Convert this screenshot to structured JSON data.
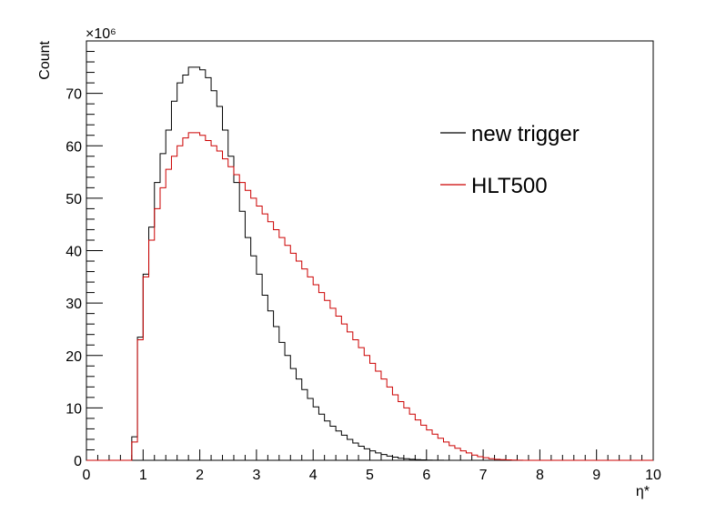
{
  "chart_data": {
    "type": "histogram",
    "xlabel": "η*",
    "ylabel": "Count",
    "y_multiplier": "×10⁶",
    "xlim": [
      0,
      10
    ],
    "ylim": [
      0,
      80
    ],
    "bin_width": 0.1,
    "x_ticks": [
      "0",
      "1",
      "2",
      "3",
      "4",
      "5",
      "6",
      "7",
      "8",
      "9",
      "10"
    ],
    "y_ticks": [
      "0",
      "10",
      "20",
      "30",
      "40",
      "50",
      "60",
      "70"
    ],
    "legend_position": "top-right",
    "series": [
      {
        "name": "new trigger",
        "color": "#000000",
        "values": [
          0,
          0,
          0,
          0,
          0,
          0,
          0,
          0,
          4.5,
          23.5,
          35.5,
          44.5,
          53,
          58.5,
          63,
          68.5,
          72,
          73.5,
          75,
          75,
          74.5,
          73,
          70.5,
          67.5,
          63,
          58,
          53,
          47.5,
          42.5,
          39,
          35.5,
          31.5,
          28.5,
          25.5,
          22.5,
          20,
          17.5,
          15.5,
          13.5,
          11.8,
          10.2,
          8.8,
          7.5,
          6.5,
          5.6,
          4.8,
          4,
          3.3,
          2.7,
          2.2,
          1.8,
          1.4,
          1.1,
          0.8,
          0.6,
          0.4,
          0.3,
          0.2,
          0.12,
          0.08,
          0.05,
          0.03,
          0.02,
          0,
          0,
          0,
          0,
          0,
          0,
          0,
          0,
          0,
          0,
          0,
          0,
          0,
          0,
          0,
          0,
          0,
          0,
          0,
          0,
          0,
          0,
          0,
          0,
          0,
          0,
          0,
          0,
          0,
          0,
          0,
          0,
          0,
          0,
          0,
          0,
          0
        ]
      },
      {
        "name": "HLT500",
        "color": "#cc0000",
        "values": [
          0,
          0,
          0,
          0,
          0,
          0,
          0,
          0,
          3.5,
          23,
          35,
          42,
          48,
          52,
          55.5,
          58,
          60,
          61.5,
          62.5,
          62.5,
          62,
          61,
          60,
          59,
          57.5,
          56,
          54.5,
          53,
          51.5,
          50,
          48.5,
          47,
          45.5,
          44,
          42.5,
          41,
          39.5,
          38,
          36.5,
          35,
          33.5,
          32,
          30.5,
          29,
          27.5,
          26,
          24.5,
          23,
          21.5,
          20,
          18.5,
          17,
          15.5,
          14,
          12.5,
          11.2,
          10,
          8.8,
          7.7,
          6.7,
          5.8,
          5,
          4.2,
          3.5,
          2.8,
          2.3,
          1.8,
          1.4,
          1,
          0.7,
          0.5,
          0.3,
          0.2,
          0.12,
          0.08,
          0.05,
          0.03,
          0,
          0,
          0,
          0,
          0,
          0,
          0,
          0,
          0,
          0,
          0,
          0,
          0,
          0,
          0,
          0,
          0,
          0,
          0,
          0,
          0,
          0,
          0
        ]
      }
    ]
  }
}
